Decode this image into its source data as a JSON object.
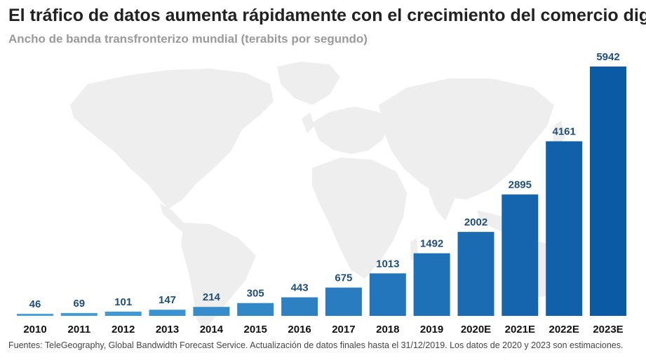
{
  "chart_data": {
    "type": "bar",
    "title": "El tráfico de datos aumenta rápidamente con el crecimiento del comercio digital",
    "subtitle": "Ancho de banda transfronterizo mundial (terabits por segundo)",
    "xlabel": "",
    "ylabel": "",
    "ylim": [
      0,
      6300
    ],
    "grid": false,
    "categories": [
      "2010",
      "2011",
      "2012",
      "2013",
      "2014",
      "2015",
      "2016",
      "2017",
      "2018",
      "2019",
      "2020E",
      "2021E",
      "2022E",
      "2023E"
    ],
    "values": [
      46,
      69,
      101,
      147,
      214,
      305,
      443,
      675,
      1013,
      1492,
      2002,
      2895,
      4161,
      5942
    ],
    "value_labels": [
      "46",
      "69",
      "101",
      "147",
      "214",
      "305",
      "443",
      "675",
      "1013",
      "1492",
      "2002",
      "2895",
      "4161",
      "5942"
    ],
    "source": "Fuentes: TeleGeography, Global Bandwidth Forecast Service. Actualización de datos finales hasta el 31/12/2019. Los datos de 2020 y 2023 son estimaciones."
  },
  "colors": {
    "bar_start": "#4aa3dc",
    "bar_end": "#0b5aa6",
    "label_text": "#1f4e79",
    "map": "#eeeeee"
  },
  "background_icon": "world-map-icon"
}
